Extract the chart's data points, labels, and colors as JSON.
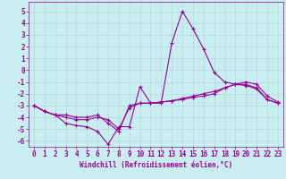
{
  "xlabel": "Windchill (Refroidissement éolien,°C)",
  "background_color": "#c8eef0",
  "line_color": "#990099",
  "grid_color": "#b0d8dc",
  "xlim": [
    -0.5,
    23.5
  ],
  "ylim": [
    -6.5,
    5.8
  ],
  "yticks": [
    -6,
    -5,
    -4,
    -3,
    -2,
    -1,
    0,
    1,
    2,
    3,
    4,
    5
  ],
  "xticks": [
    0,
    1,
    2,
    3,
    4,
    5,
    6,
    7,
    8,
    9,
    10,
    11,
    12,
    13,
    14,
    15,
    16,
    17,
    18,
    19,
    20,
    21,
    22,
    23
  ],
  "line1_x": [
    0,
    1,
    2,
    3,
    4,
    5,
    6,
    7,
    8,
    9,
    10,
    11,
    12,
    13,
    14,
    15,
    16,
    17,
    18,
    19,
    20,
    21,
    22,
    23
  ],
  "line1_y": [
    -3.0,
    -3.5,
    -3.8,
    -4.5,
    -4.7,
    -4.8,
    -5.2,
    -6.3,
    -4.8,
    -4.8,
    -1.4,
    -2.8,
    -2.8,
    2.3,
    5.0,
    3.5,
    1.8,
    -0.2,
    -1.0,
    -1.2,
    -1.3,
    -1.6,
    -2.5,
    -2.8
  ],
  "line2_x": [
    0,
    1,
    2,
    3,
    4,
    5,
    6,
    7,
    8,
    9,
    10,
    11,
    12,
    13,
    14,
    15,
    16,
    17,
    18,
    19,
    20,
    21,
    22,
    23
  ],
  "line2_y": [
    -3.0,
    -3.5,
    -3.8,
    -3.8,
    -4.0,
    -4.0,
    -3.8,
    -4.5,
    -5.2,
    -3.0,
    -2.8,
    -2.8,
    -2.7,
    -2.6,
    -2.5,
    -2.3,
    -2.2,
    -2.0,
    -1.5,
    -1.2,
    -1.2,
    -1.5,
    -2.5,
    -2.8
  ],
  "line3_x": [
    0,
    1,
    2,
    3,
    4,
    5,
    6,
    7,
    8,
    9,
    10,
    11,
    12,
    13,
    14,
    15,
    16,
    17,
    18,
    19,
    20,
    21,
    22,
    23
  ],
  "line3_y": [
    -3.0,
    -3.5,
    -3.8,
    -4.0,
    -4.2,
    -4.2,
    -4.0,
    -4.2,
    -5.0,
    -3.2,
    -2.8,
    -2.8,
    -2.7,
    -2.6,
    -2.4,
    -2.2,
    -2.0,
    -1.8,
    -1.5,
    -1.2,
    -1.0,
    -1.2,
    -2.2,
    -2.7
  ],
  "xlabel_fontsize": 5.5,
  "tick_fontsize": 5.5
}
